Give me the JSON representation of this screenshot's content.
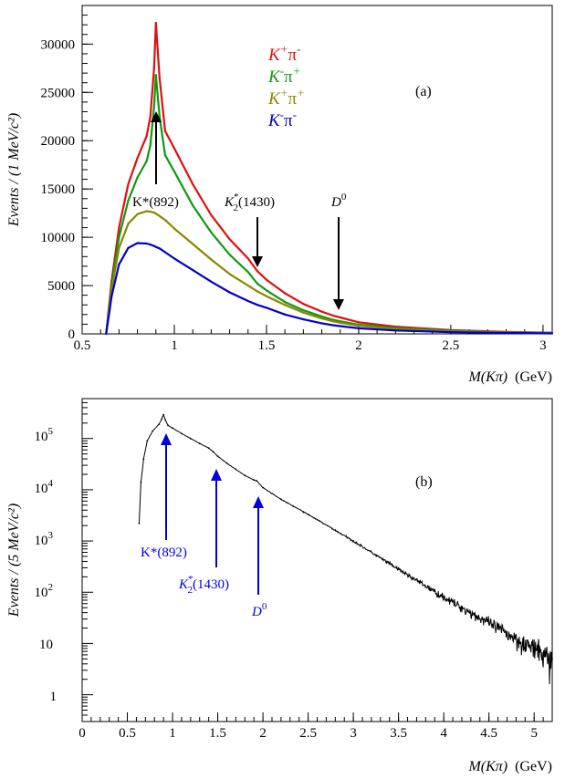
{
  "chart_data": [
    {
      "panel": "(a)",
      "type": "line",
      "xlabel_var": "M(Kπ)",
      "xlabel_unit": "(GeV)",
      "ylabel": "Events / (1 MeV/c²)",
      "xlim": [
        0.5,
        3.05
      ],
      "ylim": [
        0,
        34000
      ],
      "xticks": [
        0.5,
        1,
        1.5,
        2,
        2.5,
        3
      ],
      "yticks": [
        0,
        5000,
        10000,
        15000,
        20000,
        25000,
        30000
      ],
      "x": [
        0.63,
        0.66,
        0.7,
        0.75,
        0.8,
        0.85,
        0.87,
        0.89,
        0.9,
        0.92,
        0.95,
        1.0,
        1.1,
        1.2,
        1.3,
        1.4,
        1.45,
        1.5,
        1.6,
        1.7,
        1.8,
        1.86,
        1.9,
        2.0,
        2.2,
        2.5,
        2.8,
        3.05
      ],
      "series": [
        {
          "name": "K⁺π⁻",
          "color": "#dd1111",
          "values": [
            0,
            5500,
            11000,
            15500,
            18200,
            20500,
            22500,
            27500,
            32200,
            26500,
            21000,
            19200,
            15500,
            12300,
            9800,
            7800,
            6500,
            5600,
            4200,
            3100,
            2300,
            1900,
            1700,
            1200,
            750,
            400,
            200,
            120
          ]
        },
        {
          "name": "K⁻π⁺",
          "color": "#119911",
          "values": [
            0,
            5000,
            10000,
            13800,
            16200,
            17900,
            19500,
            23500,
            26800,
            22500,
            18500,
            16800,
            13300,
            10500,
            8200,
            6400,
            5200,
            4500,
            3300,
            2450,
            1800,
            1450,
            1300,
            950,
            600,
            320,
            160,
            100
          ]
        },
        {
          "name": "K⁺π⁺",
          "color": "#888800",
          "values": [
            0,
            4600,
            8900,
            11400,
            12400,
            12700,
            12650,
            12550,
            12450,
            12200,
            11800,
            10900,
            9300,
            7700,
            6200,
            5000,
            4400,
            3900,
            3000,
            2200,
            1600,
            1300,
            1150,
            850,
            500,
            270,
            140,
            80
          ]
        },
        {
          "name": "K⁻π⁻",
          "color": "#0000cc",
          "values": [
            0,
            3900,
            7200,
            8900,
            9400,
            9350,
            9250,
            9100,
            9000,
            8850,
            8450,
            7800,
            6600,
            5400,
            4300,
            3400,
            3000,
            2700,
            2000,
            1500,
            1100,
            900,
            800,
            580,
            350,
            180,
            90,
            50
          ]
        }
      ],
      "legend_location": "upper center",
      "annotations": [
        {
          "text": "K*(892)",
          "x": 0.9
        },
        {
          "text": "K*₂(1430)",
          "x": 1.45
        },
        {
          "text": "D⁰",
          "x": 1.88
        }
      ],
      "grid": false
    },
    {
      "panel": "(b)",
      "type": "line",
      "xlabel_var": "M(Kπ)",
      "xlabel_unit": "(GeV)",
      "ylabel": "Events / (5 MeV/c²)",
      "xlim": [
        0,
        5.2
      ],
      "ylim": [
        0.3,
        600000
      ],
      "yscale": "log",
      "xticks": [
        0,
        0.5,
        1,
        1.5,
        2,
        2.5,
        3,
        3.5,
        4,
        4.5,
        5
      ],
      "yticks": [
        1,
        10,
        100,
        1000,
        10000,
        100000
      ],
      "x": [
        0.63,
        0.65,
        0.68,
        0.72,
        0.78,
        0.85,
        0.88,
        0.9,
        0.92,
        0.95,
        1.0,
        1.1,
        1.2,
        1.3,
        1.4,
        1.45,
        1.5,
        1.6,
        1.7,
        1.8,
        1.9,
        1.93,
        2.0,
        2.2,
        2.5,
        3.0,
        3.5,
        4.0,
        4.5,
        5.0,
        5.2
      ],
      "series": [
        {
          "name": "",
          "color": "#000000",
          "values": [
            2200,
            14000,
            40000,
            90000,
            140000,
            190000,
            240000,
            290000,
            230000,
            180000,
            160000,
            125000,
            100000,
            80000,
            65000,
            55000,
            45000,
            33000,
            25000,
            19000,
            15500,
            15000,
            11000,
            6500,
            3300,
            1000,
            280,
            80,
            25,
            8,
            5
          ]
        }
      ],
      "annotations": [
        {
          "text": "K*(892)",
          "x": 0.9
        },
        {
          "text": "K*₂(1430)",
          "x": 1.45
        },
        {
          "text": "D⁰",
          "x": 1.93
        }
      ],
      "grid": false
    }
  ],
  "text": {
    "a": {
      "panel_label": "(a)",
      "ylabel": "Events / (1 MeV/c²)",
      "xlabel_var": "M(Kπ)",
      "xlabel_unit": "(GeV)",
      "ann_kstar": "K*(892)",
      "ann_k2_main": "K",
      "ann_k2_sup": "*",
      "ann_k2_sub": "2",
      "ann_k2_tail": "(1430)",
      "ann_d0_main": "D",
      "ann_d0_sup": "0"
    },
    "b": {
      "panel_label": "(b)",
      "ylabel": "Events / (5 MeV/c²)",
      "xlabel_var": "M(Kπ)",
      "xlabel_unit": "(GeV)",
      "ann_kstar": "K*(892)",
      "ann_k2_main": "K",
      "ann_k2_sup": "*",
      "ann_k2_sub": "2",
      "ann_k2_tail": "(1430)",
      "ann_d0_main": "D",
      "ann_d0_sup": "0"
    },
    "legend": [
      {
        "k": "K",
        "ks": "+",
        "pi": "π",
        "ps": "-",
        "color": "#dd1111"
      },
      {
        "k": "K",
        "ks": "-",
        "pi": "π",
        "ps": "+",
        "color": "#119911"
      },
      {
        "k": "K",
        "ks": "+",
        "pi": "π",
        "ps": "+",
        "color": "#888800"
      },
      {
        "k": "K",
        "ks": "-",
        "pi": "π",
        "ps": "-",
        "color": "#0000cc"
      }
    ],
    "y_exp_labels": [
      "1",
      "10",
      "10",
      "10",
      "10",
      "10"
    ],
    "y_exp_sups": [
      "",
      "",
      "2",
      "3",
      "4",
      "5"
    ]
  },
  "colors": {
    "annotation_b": "#0000dd",
    "axis": "#000000"
  }
}
